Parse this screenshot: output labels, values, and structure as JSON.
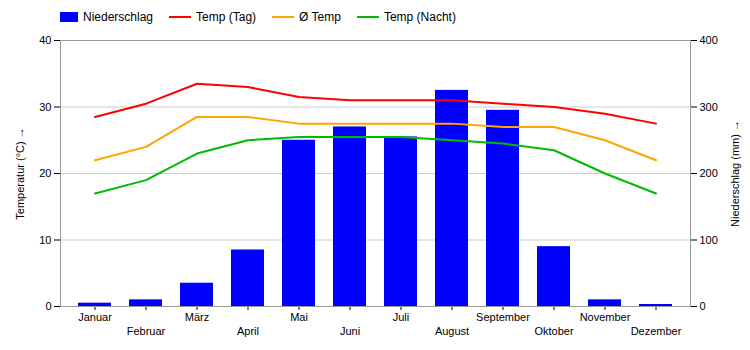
{
  "chart_data": {
    "type": "bar",
    "categories": [
      "Januar",
      "Februar",
      "März",
      "April",
      "Mai",
      "Juni",
      "Juli",
      "August",
      "September",
      "Oktober",
      "November",
      "Dezember"
    ],
    "series": [
      {
        "name": "Niederschlag",
        "type": "bar",
        "axis": "y2",
        "color": "#0000FF",
        "values": [
          5,
          10,
          35,
          85,
          250,
          270,
          255,
          325,
          295,
          90,
          10,
          3
        ]
      },
      {
        "name": "Temp (Tag)",
        "type": "line",
        "color": "#FF0000",
        "values": [
          28.5,
          30.5,
          33.5,
          33.0,
          31.5,
          31.0,
          31.0,
          31.0,
          30.5,
          30.0,
          29.0,
          27.5
        ]
      },
      {
        "name": "Ø Temp",
        "type": "line",
        "color": "#FFA500",
        "values": [
          22.0,
          24.0,
          28.5,
          28.5,
          27.5,
          27.5,
          27.5,
          27.5,
          27.0,
          27.0,
          25.0,
          22.0
        ]
      },
      {
        "name": "Temp (Nacht)",
        "type": "line",
        "color": "#00BB00",
        "values": [
          17.0,
          19.0,
          23.0,
          25.0,
          25.5,
          25.5,
          25.5,
          25.0,
          24.5,
          23.5,
          20.0,
          17.0
        ]
      }
    ],
    "ylabel": "Temperatur (°C)",
    "y2label": "Niederschlag (mm)",
    "ylim": [
      0,
      40
    ],
    "yticks": [
      0,
      10,
      20,
      30,
      40
    ],
    "y2lim": [
      0,
      400
    ],
    "y2ticks": [
      0,
      100,
      200,
      300,
      400
    ],
    "grid": true,
    "legend": "upper left"
  }
}
